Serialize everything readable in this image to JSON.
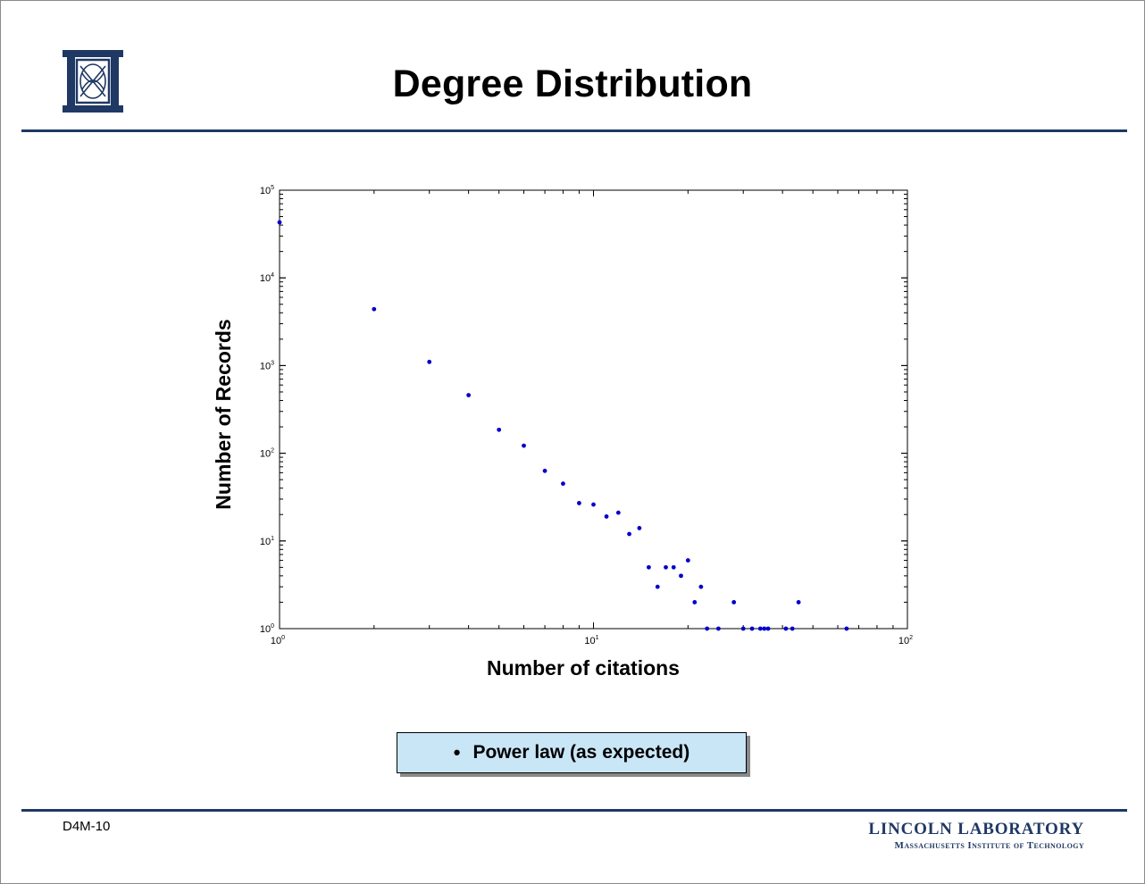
{
  "slide": {
    "title": "Degree Distribution",
    "slide_number": "D4M-10",
    "callout": "Power law (as expected)",
    "footer_line1": "LINCOLN LABORATORY",
    "footer_line2": "Massachusetts Institute of Technology",
    "logo_icon": "mit-ll-logo-icon",
    "accent_color": "#1f3864",
    "callout_color": "#c9e6f7"
  },
  "chart_data": {
    "type": "scatter",
    "title": "",
    "xlabel": "Number of citations",
    "ylabel": "Number of Records",
    "xscale": "log",
    "yscale": "log",
    "xlim": [
      1,
      100
    ],
    "ylim": [
      1,
      100000
    ],
    "x_ticks": [
      {
        "base": "10",
        "exp": "0"
      },
      {
        "base": "10",
        "exp": "1"
      },
      {
        "base": "10",
        "exp": "2"
      }
    ],
    "y_ticks": [
      {
        "base": "10",
        "exp": "0"
      },
      {
        "base": "10",
        "exp": "1"
      },
      {
        "base": "10",
        "exp": "2"
      },
      {
        "base": "10",
        "exp": "3"
      },
      {
        "base": "10",
        "exp": "4"
      },
      {
        "base": "10",
        "exp": "5"
      }
    ],
    "grid": false,
    "marker_color": "#0000cc",
    "points": [
      [
        1,
        43000
      ],
      [
        2,
        4400
      ],
      [
        3,
        1100
      ],
      [
        4,
        460
      ],
      [
        5,
        185
      ],
      [
        6,
        122
      ],
      [
        7,
        63
      ],
      [
        8,
        45
      ],
      [
        9,
        27
      ],
      [
        10,
        26
      ],
      [
        11,
        19
      ],
      [
        12,
        21
      ],
      [
        13,
        12
      ],
      [
        14,
        14
      ],
      [
        15,
        5
      ],
      [
        16,
        3
      ],
      [
        17,
        5
      ],
      [
        18,
        5
      ],
      [
        19,
        4
      ],
      [
        20,
        6
      ],
      [
        21,
        2
      ],
      [
        22,
        3
      ],
      [
        23,
        1
      ],
      [
        25,
        1
      ],
      [
        28,
        2
      ],
      [
        30,
        1
      ],
      [
        32,
        1
      ],
      [
        34,
        1
      ],
      [
        35,
        1
      ],
      [
        36,
        1
      ],
      [
        41,
        1
      ],
      [
        43,
        1
      ],
      [
        45,
        2
      ],
      [
        64,
        1
      ]
    ]
  }
}
